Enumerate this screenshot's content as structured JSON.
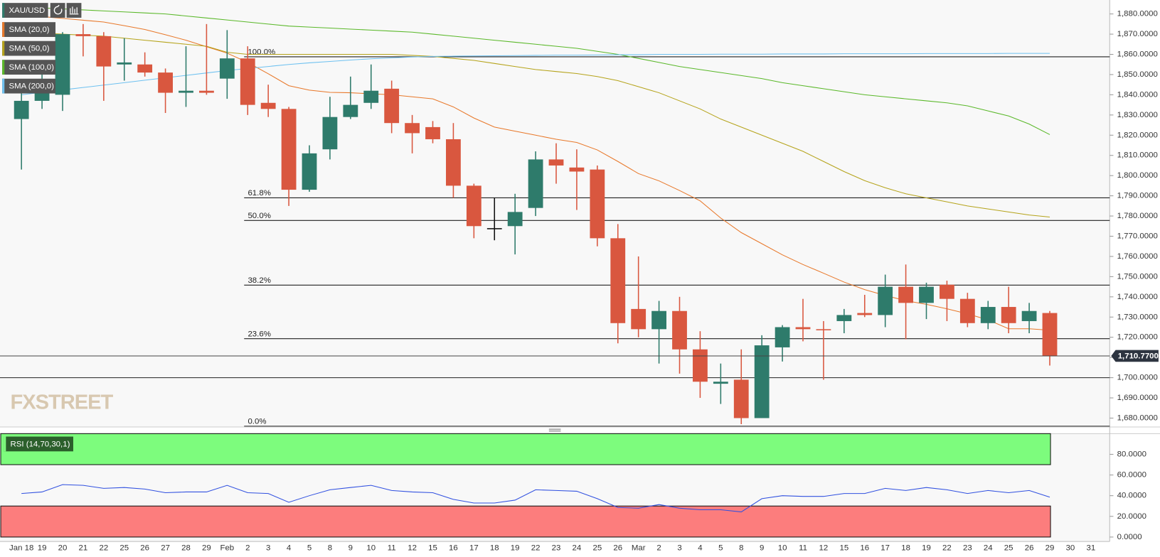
{
  "chart_data": [
    {
      "type": "candlestick",
      "title": "XAU/USD",
      "watermark": "FXSTREET",
      "categories": [
        "Jan 18",
        "19",
        "20",
        "21",
        "22",
        "25",
        "26",
        "27",
        "28",
        "29",
        "Feb",
        "2",
        "3",
        "4",
        "5",
        "8",
        "9",
        "10",
        "11",
        "12",
        "15",
        "16",
        "17",
        "18",
        "19",
        "22",
        "23",
        "24",
        "25",
        "26",
        "Mar",
        "2",
        "3",
        "4",
        "5",
        "8",
        "9",
        "10",
        "11",
        "12",
        "15",
        "16",
        "17",
        "18",
        "19",
        "22",
        "23",
        "24",
        "25",
        "26",
        "29",
        "30",
        "31"
      ],
      "open": [
        1828,
        1837,
        1840,
        1870,
        1869,
        1855,
        1855,
        1851,
        1841,
        1842,
        1848,
        1858,
        1836,
        1833,
        1793,
        1813,
        1829,
        1836,
        1843,
        1826,
        1824,
        1818,
        1795,
        1774,
        1775,
        1784,
        1808,
        1804,
        1803,
        1769,
        1734,
        1724,
        1733,
        1714,
        1697,
        1699,
        1680,
        1715,
        1725,
        1724,
        1728,
        1732,
        1731,
        1745,
        1737,
        1746,
        1739,
        1727,
        1735,
        1728,
        1732,
        null,
        null
      ],
      "high": [
        1841,
        1857,
        1871,
        1875,
        1871,
        1868,
        1861,
        1853,
        1864,
        1875,
        1872,
        1864,
        1845,
        1834,
        1815,
        1839,
        1849,
        1855,
        1847,
        1830,
        1827,
        1826,
        1796,
        1789,
        1791,
        1812,
        1816,
        1813,
        1805,
        1776,
        1760,
        1738,
        1740,
        1723,
        1707,
        1714,
        1721,
        1726,
        1739,
        1728,
        1734,
        1741,
        1751,
        1756,
        1747,
        1748,
        1742,
        1738,
        1745,
        1737,
        1733,
        null,
        null
      ],
      "low": [
        1803,
        1833,
        1832,
        1859,
        1837,
        1847,
        1849,
        1831,
        1834,
        1840,
        1838,
        1830,
        1829,
        1785,
        1792,
        1808,
        1828,
        1833,
        1821,
        1811,
        1816,
        1789,
        1769,
        1768,
        1761,
        1780,
        1796,
        1783,
        1765,
        1717,
        1720,
        1707,
        1702,
        1690,
        1687,
        1677,
        1680,
        1708,
        1718,
        1699,
        1722,
        1730,
        1725,
        1719,
        1729,
        1728,
        1725,
        1724,
        1722,
        1722,
        1706,
        null,
        null
      ],
      "close": [
        1837,
        1841,
        1870,
        1869,
        1854,
        1856,
        1851,
        1841,
        1842,
        1841,
        1858,
        1835,
        1833,
        1793,
        1811,
        1829,
        1835,
        1842,
        1826,
        1821,
        1818,
        1795,
        1775,
        1774,
        1782,
        1808,
        1805,
        1802,
        1769,
        1727,
        1724,
        1733,
        1714,
        1698,
        1698,
        1680,
        1716,
        1725,
        1724,
        1723.5,
        1731,
        1731,
        1745,
        1737,
        1745,
        1739,
        1727,
        1735,
        1727,
        1733,
        1710.77,
        null,
        null
      ],
      "up_color": "#2e7b6b",
      "down_color": "#d9573f",
      "doji_color": "#111111",
      "series": [
        {
          "name": "SMA (20,0)",
          "color": "#e8782a",
          "values": [
            1879.6,
            1878.7,
            1877.8,
            1876.9,
            1876,
            1874.2,
            1872.3,
            1869.7,
            1867,
            1863.8,
            1860.6,
            1856,
            1850.4,
            1844.5,
            1842.3,
            1841.2,
            1841,
            1840.5,
            1840,
            1839,
            1838,
            1834,
            1828.5,
            1824,
            1822,
            1820,
            1818,
            1816.4,
            1812.7,
            1807,
            1801,
            1797.4,
            1792.6,
            1787.5,
            1779,
            1771.8,
            1766.3,
            1760.8,
            1756,
            1751.7,
            1747.3,
            1743.6,
            1740.7,
            1738.1,
            1736.3,
            1734.1,
            1731.6,
            1728.6,
            1724.2,
            1724.2,
            1723.5,
            null,
            null
          ]
        },
        {
          "name": "SMA (50,0)",
          "color": "#b5a31a",
          "values": [
            1871,
            1870.5,
            1870,
            1869.5,
            1869,
            1868,
            1867,
            1866,
            1865,
            1864,
            1861,
            1860,
            1860,
            1860,
            1860,
            1860,
            1860,
            1860,
            1860,
            1859.5,
            1859,
            1858,
            1857,
            1855.5,
            1854,
            1852.5,
            1851.5,
            1850.5,
            1849,
            1847,
            1844,
            1841,
            1837,
            1833,
            1828,
            1824,
            1820,
            1816,
            1812,
            1807,
            1802,
            1797.5,
            1794,
            1791,
            1789,
            1787,
            1785,
            1783.5,
            1782,
            1780.5,
            1779.5,
            null,
            null
          ]
        },
        {
          "name": "SMA (100,0)",
          "color": "#5ab829",
          "values": [
            1883.5,
            1883,
            1882.5,
            1882,
            1881.5,
            1881,
            1880.5,
            1880,
            1879,
            1878,
            1877,
            1876,
            1875,
            1874,
            1873.5,
            1873,
            1872.5,
            1872,
            1871.5,
            1871,
            1870,
            1869,
            1868,
            1867,
            1866,
            1865,
            1864,
            1863,
            1861.5,
            1860,
            1858,
            1856,
            1854,
            1852.5,
            1851,
            1849.5,
            1848,
            1846,
            1844.5,
            1843,
            1841.5,
            1840,
            1839,
            1838,
            1837,
            1836,
            1834.5,
            1832,
            1829.5,
            1825.5,
            1820.3,
            null,
            null
          ]
        },
        {
          "name": "SMA (200,0)",
          "color": "#6ec1f0",
          "values": [
            1840,
            1841.2,
            1842.4,
            1843.6,
            1844.8,
            1846,
            1847.2,
            1848.4,
            1849.6,
            1850.8,
            1852,
            1853,
            1854,
            1855,
            1855.8,
            1856.5,
            1857.2,
            1857.8,
            1858.3,
            1858.7,
            1859,
            1859.1,
            1859.2,
            1859.3,
            1859.4,
            1859.5,
            1859.6,
            1859.6,
            1859.7,
            1859.8,
            1859.8,
            1860,
            1860,
            1860,
            1860.1,
            1860.1,
            1860.1,
            1860.2,
            1860.2,
            1860.2,
            1860.3,
            1860.3,
            1860.3,
            1860.3,
            1860.4,
            1860.4,
            1860.4,
            1860.4,
            1860.5,
            1860.5,
            1860.5,
            null,
            null
          ]
        }
      ],
      "fib_levels": [
        {
          "label": "100.0%",
          "value": 1858.8
        },
        {
          "label": "61.8%",
          "value": 1789.0
        },
        {
          "label": "50.0%",
          "value": 1777.8
        },
        {
          "label": "38.2%",
          "value": 1745.8
        },
        {
          "label": "23.6%",
          "value": 1719.3
        },
        {
          "label": "0.0%",
          "value": 1676.0
        }
      ],
      "horizontal_line": 1700,
      "last_price": {
        "value": 1710.77,
        "label": "1,710.7700"
      },
      "ylim": [
        1675.6,
        1886.9
      ],
      "yticks": [
        {
          "value": 1680,
          "label": "1,680.0000"
        },
        {
          "value": 1690,
          "label": "1,690.0000"
        },
        {
          "value": 1700,
          "label": "1,700.0000"
        },
        {
          "value": 1710,
          "label": "1,710.0000"
        },
        {
          "value": 1720,
          "label": "1,720.0000"
        },
        {
          "value": 1730,
          "label": "1,730.0000"
        },
        {
          "value": 1740,
          "label": "1,740.0000"
        },
        {
          "value": 1750,
          "label": "1,750.0000"
        },
        {
          "value": 1760,
          "label": "1,760.0000"
        },
        {
          "value": 1770,
          "label": "1,770.0000"
        },
        {
          "value": 1780,
          "label": "1,780.0000"
        },
        {
          "value": 1790,
          "label": "1,790.0000"
        },
        {
          "value": 1800,
          "label": "1,800.0000"
        },
        {
          "value": 1810,
          "label": "1,810.0000"
        },
        {
          "value": 1820,
          "label": "1,820.0000"
        },
        {
          "value": 1830,
          "label": "1,830.0000"
        },
        {
          "value": 1840,
          "label": "1,840.0000"
        },
        {
          "value": 1850,
          "label": "1,850.0000"
        },
        {
          "value": 1860,
          "label": "1,860.0000"
        },
        {
          "value": 1870,
          "label": "1,870.0000"
        },
        {
          "value": 1880,
          "label": "1,880.0000"
        }
      ]
    },
    {
      "type": "line",
      "title": "RSI (14,70,30,1)",
      "color": "#3050e0",
      "values": [
        42.1,
        43.6,
        50.7,
        50.0,
        47.1,
        47.9,
        46.4,
        42.9,
        43.6,
        43.6,
        50.0,
        42.9,
        42.1,
        33.6,
        40.0,
        45.7,
        47.9,
        50.0,
        45.0,
        43.6,
        42.9,
        36.4,
        32.9,
        32.9,
        35.7,
        45.7,
        45.0,
        44.3,
        37.1,
        28.6,
        27.9,
        31.4,
        27.9,
        26.4,
        26.4,
        24.3,
        37.1,
        40.0,
        39.3,
        39.3,
        42.1,
        42.1,
        47.1,
        45.0,
        47.9,
        45.7,
        42.1,
        45.0,
        42.9,
        45.0,
        38.6,
        null,
        null
      ],
      "zones": [
        {
          "from": 70,
          "to": 100,
          "color": "#7dfc7d"
        },
        {
          "from": 0,
          "to": 30,
          "color": "#fc7d7d"
        }
      ],
      "ylim": [
        -4.3,
        100
      ],
      "yticks": [
        {
          "value": 0,
          "label": "0.0000"
        },
        {
          "value": 20,
          "label": "20.0000"
        },
        {
          "value": 40,
          "label": "40.0000"
        },
        {
          "value": 60,
          "label": "60.0000"
        },
        {
          "value": 80,
          "label": "80.0000"
        }
      ]
    }
  ]
}
